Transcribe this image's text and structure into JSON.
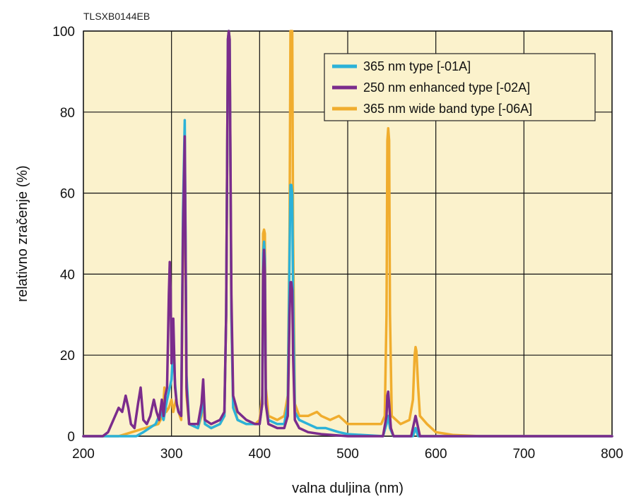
{
  "figure_id": "TLSXB0144EB",
  "chart_data": {
    "type": "line",
    "title": "",
    "xlabel": "valna duljina (nm)",
    "ylabel": "relativno zračenje (%)",
    "xlim": [
      200,
      800
    ],
    "ylim": [
      0,
      100
    ],
    "x_ticks": [
      "200",
      "300",
      "400",
      "500",
      "600",
      "700",
      "800"
    ],
    "y_ticks": [
      "0",
      "20",
      "40",
      "60",
      "80",
      "100"
    ],
    "grid": true,
    "background_color": "#fbf2cc",
    "grid_color": "#111111",
    "legend_position": "top-right",
    "series": [
      {
        "name": "365 nm wide band type [-06A]",
        "color": "#f0ad2e",
        "points": [
          [
            200,
            0
          ],
          [
            240,
            0
          ],
          [
            255,
            1
          ],
          [
            270,
            2
          ],
          [
            285,
            3
          ],
          [
            290,
            5
          ],
          [
            292,
            12
          ],
          [
            294,
            6
          ],
          [
            297,
            7
          ],
          [
            300,
            9
          ],
          [
            302,
            6
          ],
          [
            305,
            9
          ],
          [
            308,
            6
          ],
          [
            311,
            4
          ],
          [
            313,
            45
          ],
          [
            315,
            70
          ],
          [
            317,
            10
          ],
          [
            320,
            3
          ],
          [
            330,
            2
          ],
          [
            334,
            5
          ],
          [
            336,
            10
          ],
          [
            338,
            3
          ],
          [
            345,
            2
          ],
          [
            355,
            3
          ],
          [
            360,
            5
          ],
          [
            362,
            30
          ],
          [
            364,
            98
          ],
          [
            365,
            100
          ],
          [
            366,
            98
          ],
          [
            368,
            30
          ],
          [
            370,
            8
          ],
          [
            375,
            4
          ],
          [
            385,
            3
          ],
          [
            395,
            3
          ],
          [
            400,
            4
          ],
          [
            403,
            10
          ],
          [
            404,
            50
          ],
          [
            405,
            51
          ],
          [
            406,
            50
          ],
          [
            407,
            12
          ],
          [
            410,
            5
          ],
          [
            420,
            4
          ],
          [
            428,
            5
          ],
          [
            432,
            10
          ],
          [
            434,
            50
          ],
          [
            435,
            100
          ],
          [
            436,
            100
          ],
          [
            437,
            100
          ],
          [
            438,
            50
          ],
          [
            440,
            8
          ],
          [
            445,
            5
          ],
          [
            455,
            5
          ],
          [
            465,
            6
          ],
          [
            470,
            5
          ],
          [
            480,
            4
          ],
          [
            490,
            5
          ],
          [
            495,
            4
          ],
          [
            500,
            3
          ],
          [
            520,
            3
          ],
          [
            538,
            3
          ],
          [
            542,
            5
          ],
          [
            544,
            30
          ],
          [
            545,
            73
          ],
          [
            546,
            76
          ],
          [
            547,
            73
          ],
          [
            548,
            30
          ],
          [
            550,
            5
          ],
          [
            560,
            3
          ],
          [
            570,
            4
          ],
          [
            574,
            9
          ],
          [
            576,
            20
          ],
          [
            577,
            22
          ],
          [
            578,
            21
          ],
          [
            580,
            12
          ],
          [
            582,
            5
          ],
          [
            590,
            3
          ],
          [
            600,
            1
          ],
          [
            620,
            0.3
          ],
          [
            650,
            0
          ],
          [
            800,
            0
          ]
        ]
      },
      {
        "name": "365 nm type [-01A]",
        "color": "#2cb2d8",
        "points": [
          [
            200,
            0
          ],
          [
            260,
            0
          ],
          [
            268,
            1
          ],
          [
            275,
            2
          ],
          [
            282,
            3
          ],
          [
            288,
            6
          ],
          [
            291,
            4
          ],
          [
            295,
            9
          ],
          [
            298,
            12
          ],
          [
            300,
            14
          ],
          [
            302,
            22
          ],
          [
            304,
            13
          ],
          [
            306,
            8
          ],
          [
            308,
            6
          ],
          [
            311,
            5
          ],
          [
            313,
            55
          ],
          [
            315,
            78
          ],
          [
            317,
            15
          ],
          [
            320,
            3
          ],
          [
            330,
            2
          ],
          [
            334,
            6
          ],
          [
            336,
            12
          ],
          [
            338,
            3
          ],
          [
            345,
            2
          ],
          [
            355,
            3
          ],
          [
            360,
            5
          ],
          [
            362,
            30
          ],
          [
            364,
            98
          ],
          [
            365,
            100
          ],
          [
            366,
            98
          ],
          [
            368,
            30
          ],
          [
            370,
            7
          ],
          [
            375,
            4
          ],
          [
            385,
            3
          ],
          [
            395,
            3
          ],
          [
            400,
            3
          ],
          [
            403,
            8
          ],
          [
            404,
            45
          ],
          [
            405,
            48
          ],
          [
            406,
            44
          ],
          [
            407,
            8
          ],
          [
            410,
            4
          ],
          [
            420,
            3
          ],
          [
            428,
            3
          ],
          [
            432,
            8
          ],
          [
            434,
            45
          ],
          [
            435,
            62
          ],
          [
            436,
            62
          ],
          [
            437,
            60
          ],
          [
            438,
            35
          ],
          [
            440,
            6
          ],
          [
            445,
            4
          ],
          [
            455,
            3
          ],
          [
            465,
            2
          ],
          [
            475,
            2
          ],
          [
            490,
            1
          ],
          [
            500,
            0.5
          ],
          [
            540,
            0
          ],
          [
            544,
            3
          ],
          [
            546,
            5
          ],
          [
            548,
            2
          ],
          [
            552,
            0
          ],
          [
            574,
            0
          ],
          [
            577,
            2
          ],
          [
            580,
            0
          ],
          [
            800,
            0
          ]
        ]
      },
      {
        "name": "250 nm enhanced type [-02A]",
        "color": "#7b2c8c",
        "points": [
          [
            200,
            0
          ],
          [
            222,
            0
          ],
          [
            228,
            1
          ],
          [
            232,
            3
          ],
          [
            236,
            5
          ],
          [
            240,
            7
          ],
          [
            244,
            6
          ],
          [
            248,
            10
          ],
          [
            251,
            7
          ],
          [
            254,
            3
          ],
          [
            258,
            2
          ],
          [
            262,
            8
          ],
          [
            265,
            12
          ],
          [
            268,
            4
          ],
          [
            272,
            3
          ],
          [
            276,
            5
          ],
          [
            280,
            9
          ],
          [
            283,
            6
          ],
          [
            286,
            4
          ],
          [
            289,
            9
          ],
          [
            291,
            5
          ],
          [
            293,
            10
          ],
          [
            295,
            12
          ],
          [
            297,
            35
          ],
          [
            298,
            43
          ],
          [
            299,
            36
          ],
          [
            300,
            18
          ],
          [
            302,
            29
          ],
          [
            304,
            12
          ],
          [
            306,
            8
          ],
          [
            308,
            6
          ],
          [
            311,
            5
          ],
          [
            313,
            50
          ],
          [
            315,
            74
          ],
          [
            317,
            12
          ],
          [
            320,
            3
          ],
          [
            330,
            3
          ],
          [
            334,
            8
          ],
          [
            336,
            14
          ],
          [
            338,
            4
          ],
          [
            345,
            3
          ],
          [
            355,
            4
          ],
          [
            360,
            6
          ],
          [
            362,
            30
          ],
          [
            364,
            98
          ],
          [
            365,
            100
          ],
          [
            366,
            98
          ],
          [
            368,
            35
          ],
          [
            370,
            10
          ],
          [
            375,
            6
          ],
          [
            385,
            4
          ],
          [
            395,
            3
          ],
          [
            400,
            3
          ],
          [
            403,
            8
          ],
          [
            404,
            40
          ],
          [
            405,
            46
          ],
          [
            406,
            40
          ],
          [
            407,
            8
          ],
          [
            410,
            3
          ],
          [
            420,
            2
          ],
          [
            428,
            2
          ],
          [
            432,
            5
          ],
          [
            434,
            30
          ],
          [
            435,
            38
          ],
          [
            436,
            38
          ],
          [
            437,
            36
          ],
          [
            438,
            20
          ],
          [
            440,
            4
          ],
          [
            445,
            2
          ],
          [
            455,
            1
          ],
          [
            470,
            0.5
          ],
          [
            500,
            0
          ],
          [
            540,
            0
          ],
          [
            544,
            5
          ],
          [
            545,
            10
          ],
          [
            546,
            11
          ],
          [
            547,
            8
          ],
          [
            549,
            2
          ],
          [
            552,
            0
          ],
          [
            572,
            0
          ],
          [
            575,
            3
          ],
          [
            577,
            5
          ],
          [
            579,
            3
          ],
          [
            582,
            0
          ],
          [
            800,
            0
          ]
        ]
      }
    ]
  }
}
